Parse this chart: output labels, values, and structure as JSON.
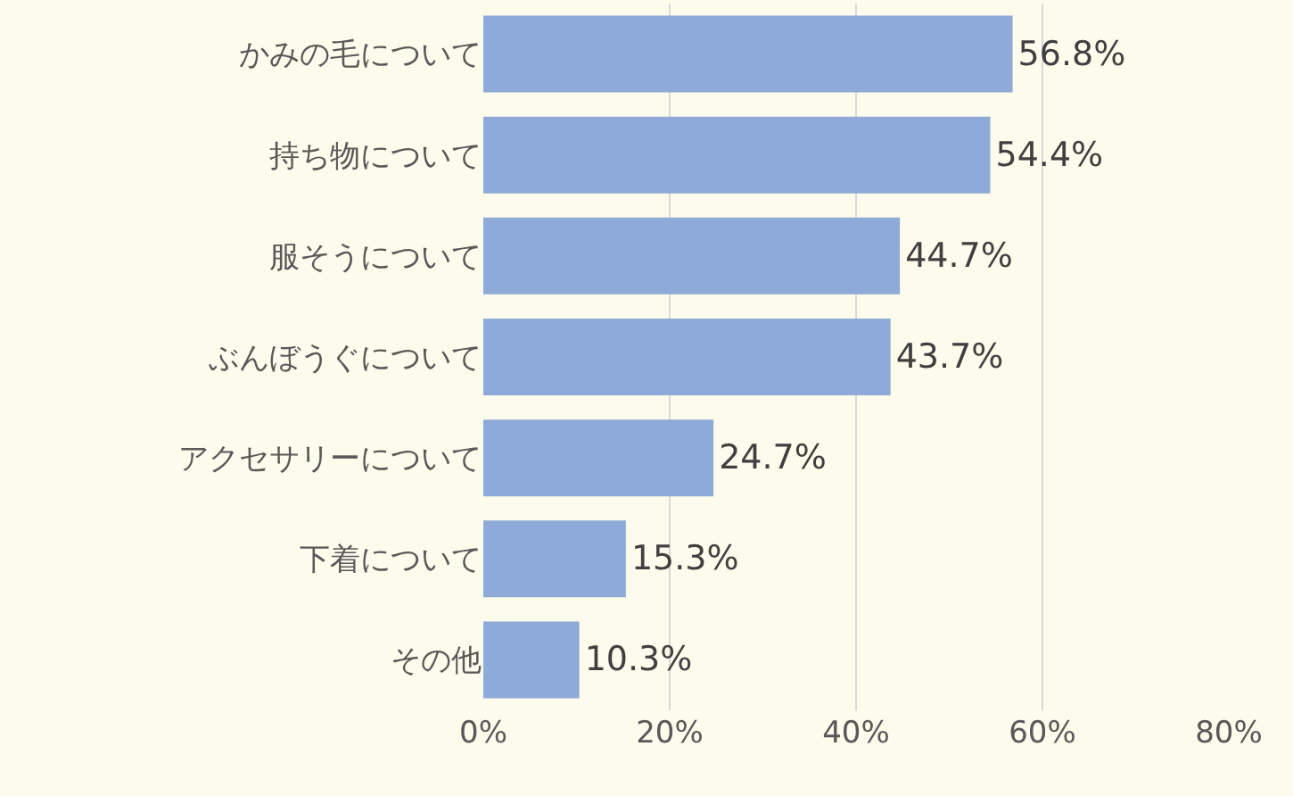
{
  "chart_data": {
    "type": "bar",
    "orientation": "horizontal",
    "categories": [
      "かみの毛について",
      "持ち物について",
      "服そうについて",
      "ぶんぼうぐについて",
      "アクセサリーについて",
      "下着について",
      "その他"
    ],
    "values": [
      56.8,
      54.4,
      44.7,
      43.7,
      24.7,
      15.3,
      10.3
    ],
    "value_labels": [
      "56.8%",
      "54.4%",
      "44.7%",
      "43.7%",
      "24.7%",
      "15.3%",
      "10.3%"
    ],
    "color": "#8eaad8",
    "xlim": [
      0,
      80
    ],
    "xticks": [
      {
        "value": 0,
        "label": "0%"
      },
      {
        "value": 20,
        "label": "20%"
      },
      {
        "value": 40,
        "label": "40%"
      },
      {
        "value": 60,
        "label": "60%"
      },
      {
        "value": 80,
        "label": "80%"
      }
    ],
    "grid": "x",
    "legend": false
  }
}
